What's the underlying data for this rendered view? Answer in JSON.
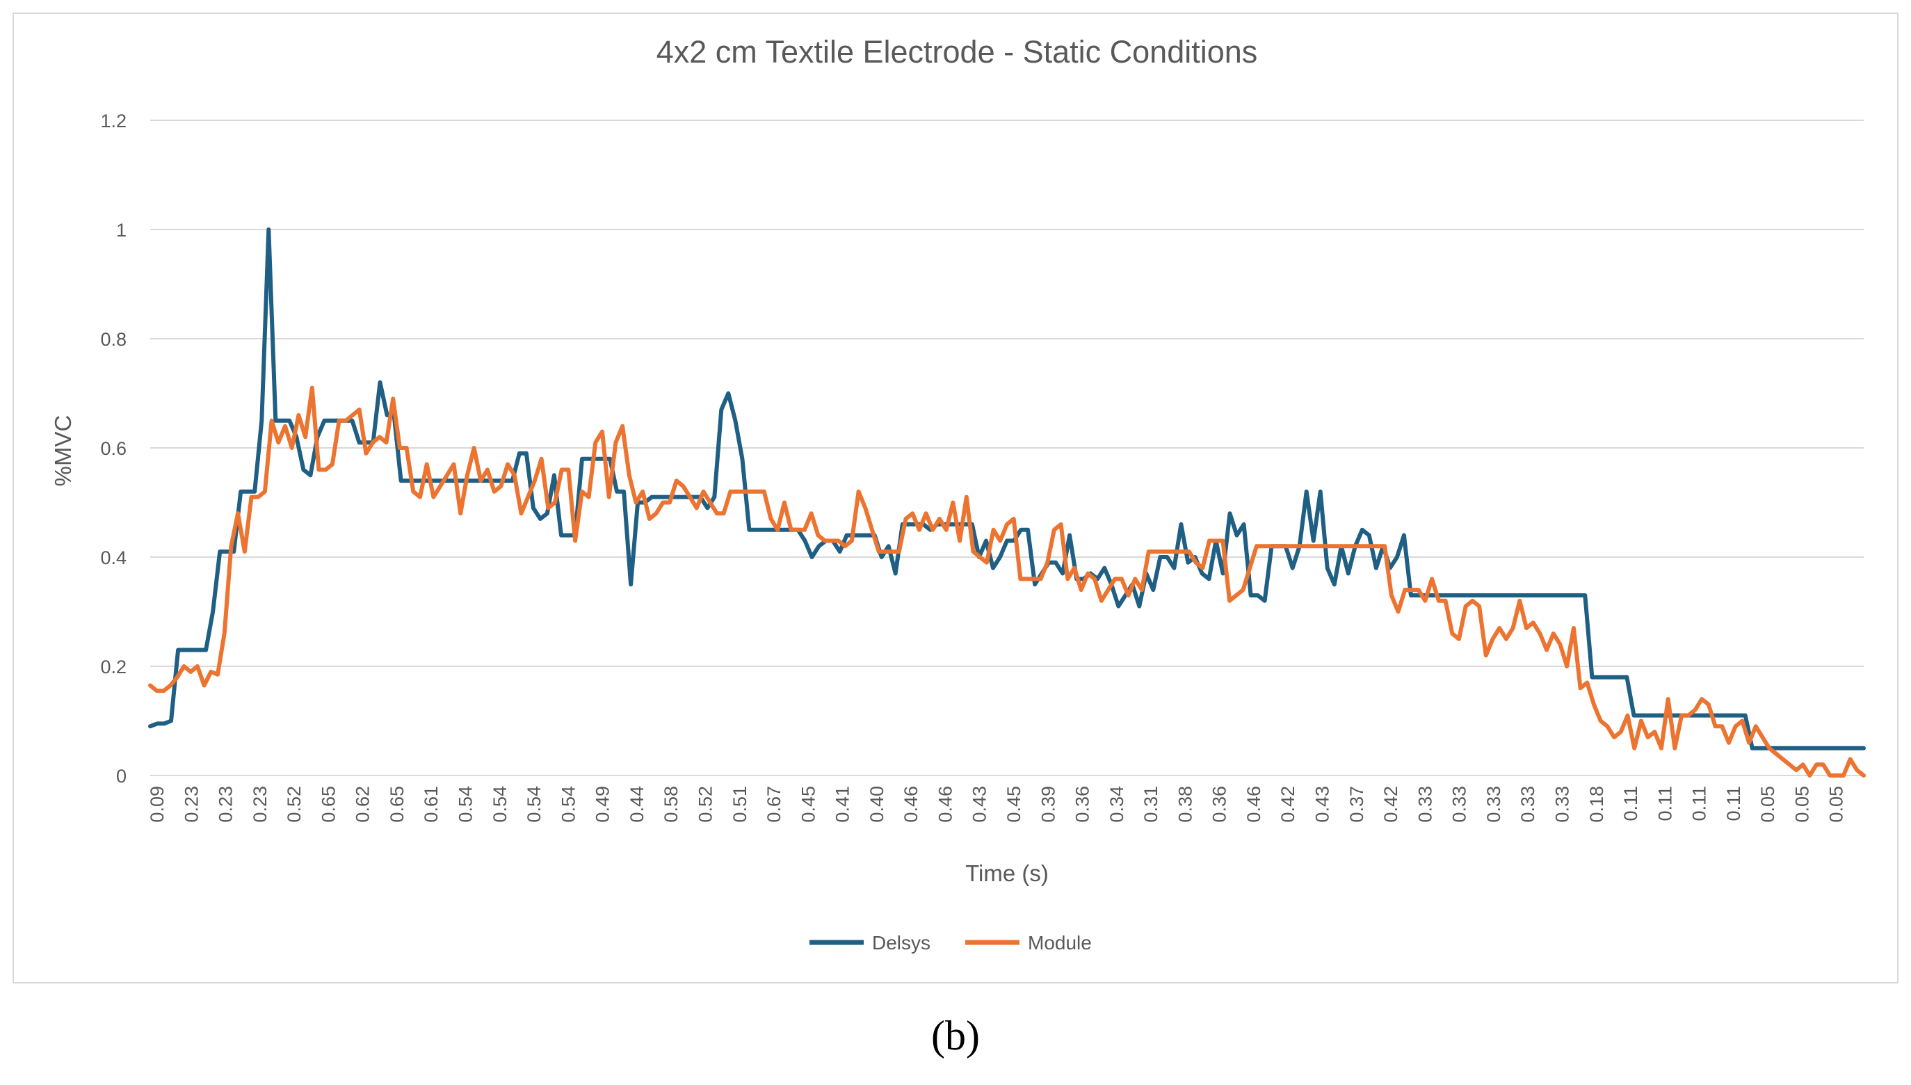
{
  "caption": "(b)",
  "chart_data": {
    "type": "line",
    "title": "4x2 cm Textile Electrode - Static Conditions",
    "xlabel": "Time (s)",
    "ylabel": "%MVC",
    "ylim": [
      0,
      1.2
    ],
    "yticks": [
      0,
      0.2,
      0.4,
      0.6,
      0.8,
      1,
      1.2
    ],
    "ytick_labels": [
      "0",
      "0.2",
      "0.4",
      "0.6",
      "0.8",
      "1",
      "1.2"
    ],
    "grid": true,
    "legend_position": "bottom",
    "x_tick_labels": [
      "0.09",
      "0.23",
      "0.23",
      "0.23",
      "0.52",
      "0.65",
      "0.62",
      "0.65",
      "0.61",
      "0.54",
      "0.54",
      "0.54",
      "0.54",
      "0.49",
      "0.44",
      "0.58",
      "0.52",
      "0.51",
      "0.67",
      "0.45",
      "0.41",
      "0.40",
      "0.46",
      "0.46",
      "0.43",
      "0.45",
      "0.39",
      "0.36",
      "0.34",
      "0.31",
      "0.38",
      "0.36",
      "0.46",
      "0.42",
      "0.43",
      "0.37",
      "0.42",
      "0.33",
      "0.33",
      "0.33",
      "0.33",
      "0.33",
      "0.18",
      "0.11",
      "0.11",
      "0.11",
      "0.11",
      "0.05",
      "0.05",
      "0.05"
    ],
    "series": [
      {
        "name": "Delsys",
        "color": "#1f5f84",
        "values": [
          0.09,
          0.095,
          0.095,
          0.1,
          0.23,
          0.23,
          0.23,
          0.23,
          0.23,
          0.3,
          0.41,
          0.41,
          0.41,
          0.52,
          0.52,
          0.52,
          0.65,
          1.0,
          0.65,
          0.65,
          0.65,
          0.62,
          0.56,
          0.55,
          0.62,
          0.65,
          0.65,
          0.65,
          0.65,
          0.65,
          0.61,
          0.61,
          0.61,
          0.72,
          0.66,
          0.66,
          0.54,
          0.54,
          0.54,
          0.54,
          0.54,
          0.54,
          0.54,
          0.54,
          0.54,
          0.54,
          0.54,
          0.54,
          0.54,
          0.54,
          0.54,
          0.54,
          0.54,
          0.59,
          0.59,
          0.49,
          0.47,
          0.48,
          0.55,
          0.44,
          0.44,
          0.44,
          0.58,
          0.58,
          0.58,
          0.58,
          0.58,
          0.52,
          0.52,
          0.35,
          0.5,
          0.5,
          0.51,
          0.51,
          0.51,
          0.51,
          0.51,
          0.51,
          0.51,
          0.51,
          0.49,
          0.51,
          0.67,
          0.7,
          0.65,
          0.58,
          0.45,
          0.45,
          0.45,
          0.45,
          0.45,
          0.45,
          0.45,
          0.45,
          0.43,
          0.4,
          0.42,
          0.43,
          0.43,
          0.41,
          0.44,
          0.44,
          0.44,
          0.44,
          0.44,
          0.4,
          0.42,
          0.37,
          0.46,
          0.46,
          0.46,
          0.46,
          0.45,
          0.46,
          0.46,
          0.46,
          0.46,
          0.46,
          0.46,
          0.4,
          0.43,
          0.38,
          0.4,
          0.43,
          0.43,
          0.45,
          0.45,
          0.35,
          0.37,
          0.39,
          0.39,
          0.37,
          0.44,
          0.36,
          0.36,
          0.37,
          0.36,
          0.38,
          0.35,
          0.31,
          0.33,
          0.35,
          0.31,
          0.37,
          0.34,
          0.4,
          0.4,
          0.38,
          0.46,
          0.39,
          0.4,
          0.37,
          0.36,
          0.43,
          0.37,
          0.48,
          0.44,
          0.46,
          0.33,
          0.33,
          0.32,
          0.42,
          0.42,
          0.42,
          0.38,
          0.42,
          0.52,
          0.43,
          0.52,
          0.38,
          0.35,
          0.42,
          0.37,
          0.42,
          0.45,
          0.44,
          0.38,
          0.42,
          0.38,
          0.4,
          0.44,
          0.33,
          0.33,
          0.33,
          0.33,
          0.33,
          0.33,
          0.33,
          0.33,
          0.33,
          0.33,
          0.33,
          0.33,
          0.33,
          0.33,
          0.33,
          0.33,
          0.33,
          0.33,
          0.33,
          0.33,
          0.33,
          0.33,
          0.33,
          0.33,
          0.33,
          0.33,
          0.18,
          0.18,
          0.18,
          0.18,
          0.18,
          0.18,
          0.11,
          0.11,
          0.11,
          0.11,
          0.11,
          0.11,
          0.11,
          0.11,
          0.11,
          0.11,
          0.11,
          0.11,
          0.11,
          0.11,
          0.11,
          0.11,
          0.11,
          0.05,
          0.05,
          0.05,
          0.05,
          0.05,
          0.05,
          0.05,
          0.05,
          0.05,
          0.05,
          0.05,
          0.05,
          0.05,
          0.05,
          0.05,
          0.05,
          0.05
        ]
      },
      {
        "name": "Module",
        "color": "#ec7430",
        "values": [
          0.165,
          0.155,
          0.155,
          0.165,
          0.18,
          0.2,
          0.19,
          0.2,
          0.165,
          0.19,
          0.185,
          0.26,
          0.42,
          0.48,
          0.41,
          0.51,
          0.51,
          0.52,
          0.65,
          0.61,
          0.64,
          0.6,
          0.66,
          0.62,
          0.71,
          0.56,
          0.56,
          0.57,
          0.65,
          0.65,
          0.66,
          0.67,
          0.59,
          0.61,
          0.62,
          0.61,
          0.69,
          0.6,
          0.6,
          0.52,
          0.51,
          0.57,
          0.51,
          0.53,
          0.55,
          0.57,
          0.48,
          0.55,
          0.6,
          0.54,
          0.56,
          0.52,
          0.53,
          0.57,
          0.55,
          0.48,
          0.51,
          0.54,
          0.58,
          0.49,
          0.5,
          0.56,
          0.56,
          0.43,
          0.52,
          0.51,
          0.61,
          0.63,
          0.51,
          0.61,
          0.64,
          0.55,
          0.5,
          0.52,
          0.47,
          0.48,
          0.5,
          0.5,
          0.54,
          0.53,
          0.51,
          0.49,
          0.52,
          0.5,
          0.48,
          0.48,
          0.52,
          0.52,
          0.52,
          0.52,
          0.52,
          0.52,
          0.47,
          0.45,
          0.5,
          0.45,
          0.45,
          0.45,
          0.48,
          0.44,
          0.43,
          0.43,
          0.43,
          0.42,
          0.43,
          0.52,
          0.49,
          0.45,
          0.41,
          0.41,
          0.41,
          0.41,
          0.47,
          0.48,
          0.45,
          0.48,
          0.45,
          0.47,
          0.45,
          0.5,
          0.43,
          0.51,
          0.41,
          0.4,
          0.39,
          0.45,
          0.43,
          0.46,
          0.47,
          0.36,
          0.36,
          0.36,
          0.36,
          0.39,
          0.45,
          0.46,
          0.36,
          0.38,
          0.34,
          0.37,
          0.36,
          0.32,
          0.34,
          0.36,
          0.36,
          0.33,
          0.36,
          0.34,
          0.41,
          0.41,
          0.41,
          0.41,
          0.41,
          0.41,
          0.41,
          0.39,
          0.38,
          0.43,
          0.43,
          0.43,
          0.32,
          0.33,
          0.34,
          0.38,
          0.42,
          0.42,
          0.42,
          0.42,
          0.42,
          0.42,
          0.42,
          0.42,
          0.42,
          0.42,
          0.42,
          0.42,
          0.42,
          0.42,
          0.42,
          0.42,
          0.42,
          0.42,
          0.42,
          0.42,
          0.33,
          0.3,
          0.34,
          0.34,
          0.34,
          0.32,
          0.36,
          0.32,
          0.32,
          0.26,
          0.25,
          0.31,
          0.32,
          0.31,
          0.22,
          0.25,
          0.27,
          0.25,
          0.27,
          0.32,
          0.27,
          0.28,
          0.26,
          0.23,
          0.26,
          0.24,
          0.2,
          0.27,
          0.16,
          0.17,
          0.13,
          0.1,
          0.09,
          0.07,
          0.08,
          0.11,
          0.05,
          0.1,
          0.07,
          0.08,
          0.05,
          0.14,
          0.05,
          0.11,
          0.11,
          0.12,
          0.14,
          0.13,
          0.09,
          0.09,
          0.06,
          0.09,
          0.1,
          0.06,
          0.09,
          0.07,
          0.05,
          0.04,
          0.03,
          0.02,
          0.01,
          0.02,
          0.0,
          0.02,
          0.02,
          0.0,
          0.0,
          0.0,
          0.03,
          0.01,
          0.0
        ]
      }
    ]
  }
}
